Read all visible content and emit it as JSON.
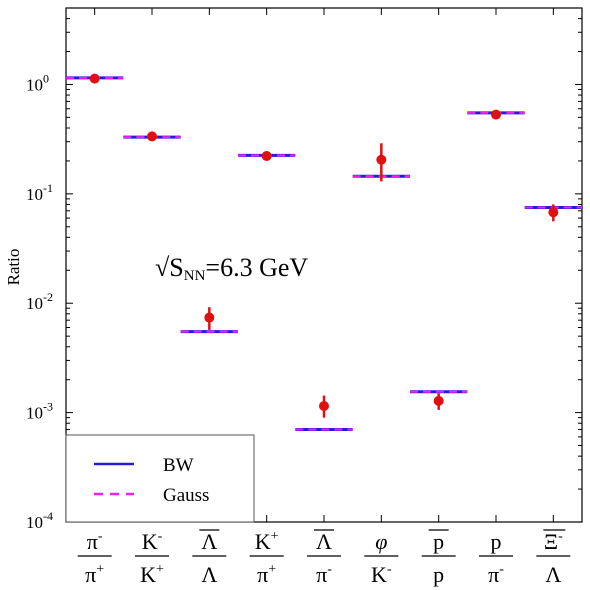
{
  "chart_data": {
    "type": "scatter",
    "scale": "log",
    "ylabel": "Ratio",
    "ylim": [
      0.0001,
      5
    ],
    "yticks": [
      {
        "value": 0.0001,
        "base": "10",
        "exp": "-4"
      },
      {
        "value": 0.001,
        "base": "10",
        "exp": "-3"
      },
      {
        "value": 0.01,
        "base": "10",
        "exp": "-2"
      },
      {
        "value": 0.1,
        "base": "10",
        "exp": "-1"
      },
      {
        "value": 1,
        "base": "10",
        "exp": "0"
      }
    ],
    "annotation": {
      "sqrt": "√",
      "main": "S",
      "sub": "NN",
      "rest": "=6.3 GeV"
    },
    "categories": [
      {
        "num": "π",
        "num_sup": "-",
        "den": "π",
        "den_sup": "+"
      },
      {
        "num": "K",
        "num_sup": "-",
        "den": "K",
        "den_sup": "+"
      },
      {
        "num": "Λ",
        "num_sup": "",
        "num_bar": true,
        "den": "Λ",
        "den_sup": ""
      },
      {
        "num": "K",
        "num_sup": "+",
        "den": "π",
        "den_sup": "+"
      },
      {
        "num": "Λ",
        "num_sup": "",
        "num_bar": true,
        "den": "π",
        "den_sup": "-"
      },
      {
        "num": "φ",
        "num_sup": "",
        "num_italic": true,
        "den": "K",
        "den_sup": "-"
      },
      {
        "num": "p",
        "num_sup": "",
        "num_bar": true,
        "den": "p",
        "den_sup": ""
      },
      {
        "num": "p",
        "num_sup": "",
        "den": "π",
        "den_sup": "-"
      },
      {
        "num": "Ξ",
        "num_sup": "-",
        "num_bar": true,
        "den": "Λ",
        "den_sup": ""
      }
    ],
    "series": [
      {
        "name": "BW",
        "style": "solid",
        "color": "#2a1ad8",
        "values": [
          1.15,
          0.33,
          0.0055,
          0.225,
          0.0007,
          0.145,
          0.00155,
          0.55,
          0.075
        ]
      },
      {
        "name": "Gauss",
        "style": "dashed",
        "color": "#f020f0",
        "values": [
          1.15,
          0.33,
          0.0055,
          0.225,
          0.0007,
          0.145,
          0.00155,
          0.55,
          0.075
        ]
      }
    ],
    "data_points": {
      "color": "#e01010",
      "values": [
        1.13,
        0.335,
        0.0074,
        0.222,
        0.00115,
        0.205,
        0.00128,
        0.53,
        0.068
      ],
      "err_low": [
        0.05,
        0.01,
        0.0017,
        0.01,
        0.00025,
        0.075,
        0.00022,
        0.03,
        0.012
      ],
      "err_high": [
        0.05,
        0.01,
        0.0018,
        0.01,
        0.00028,
        0.085,
        0.00022,
        0.03,
        0.012
      ]
    },
    "legend": {
      "position": "bottom-left",
      "entries": [
        "BW",
        "Gauss"
      ]
    }
  }
}
